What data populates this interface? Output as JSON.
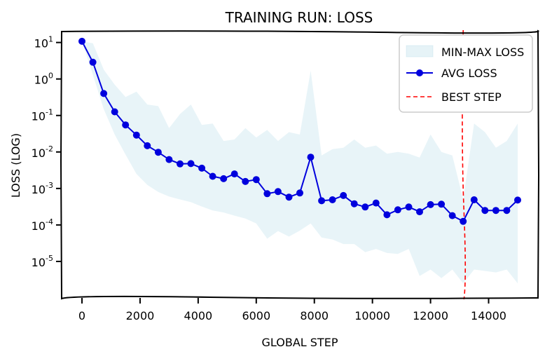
{
  "chart_data": {
    "type": "line",
    "title": "TRAINING RUN: LOSS",
    "xlabel": "GLOBAL STEP",
    "ylabel": "LOSS (LOG)",
    "xlim": [
      -700,
      15700
    ],
    "ylim_log10": [
      -6.0,
      1.3
    ],
    "yscale": "log",
    "x_ticks": [
      0,
      2000,
      4000,
      6000,
      8000,
      10000,
      12000,
      14000
    ],
    "y_ticks": [
      {
        "exp": 1,
        "base": "10",
        "sup": "1"
      },
      {
        "exp": 0,
        "base": "10",
        "sup": "0"
      },
      {
        "exp": -1,
        "base": "10",
        "sup": "-1"
      },
      {
        "exp": -2,
        "base": "10",
        "sup": "-2"
      },
      {
        "exp": -3,
        "base": "10",
        "sup": "-3"
      },
      {
        "exp": -4,
        "base": "10",
        "sup": "-4"
      },
      {
        "exp": -5,
        "base": "10",
        "sup": "-5"
      }
    ],
    "grid": false,
    "legend_position": "top-right",
    "legend": [
      {
        "label": "MIN-MAX LOSS",
        "kind": "band"
      },
      {
        "label": "AVG LOSS",
        "kind": "line-marker"
      },
      {
        "label": "BEST STEP",
        "kind": "dashed"
      }
    ],
    "series": [
      {
        "name": "AVG LOSS",
        "color": "#0000dd",
        "points": [
          [
            0,
            10.8
          ],
          [
            375,
            2.87
          ],
          [
            750,
            0.4
          ],
          [
            1125,
            0.126
          ],
          [
            1500,
            0.055
          ],
          [
            1875,
            0.029
          ],
          [
            2250,
            0.0148
          ],
          [
            2625,
            0.0098
          ],
          [
            3000,
            0.0062
          ],
          [
            3375,
            0.0047
          ],
          [
            3750,
            0.0048
          ],
          [
            4125,
            0.0036
          ],
          [
            4500,
            0.00215
          ],
          [
            4875,
            0.00185
          ],
          [
            5250,
            0.0025
          ],
          [
            5625,
            0.00155
          ],
          [
            6000,
            0.00175
          ],
          [
            6375,
            0.00072
          ],
          [
            6750,
            0.00082
          ],
          [
            7125,
            0.00058
          ],
          [
            7500,
            0.00075
          ],
          [
            7875,
            0.0072
          ],
          [
            8250,
            0.00046
          ],
          [
            8625,
            0.00049
          ],
          [
            9000,
            0.00064
          ],
          [
            9375,
            0.00038
          ],
          [
            9750,
            0.00031
          ],
          [
            10125,
            0.0004
          ],
          [
            10500,
            0.00019
          ],
          [
            10875,
            0.00026
          ],
          [
            11250,
            0.00031
          ],
          [
            11625,
            0.00023
          ],
          [
            12000,
            0.00036
          ],
          [
            12375,
            0.00037
          ],
          [
            12750,
            0.00018
          ],
          [
            13125,
            0.000125
          ],
          [
            13500,
            0.00049
          ],
          [
            13875,
            0.00025
          ],
          [
            14250,
            0.00025
          ],
          [
            14625,
            0.00025
          ],
          [
            15000,
            0.00048
          ]
        ]
      },
      {
        "name": "MIN-MAX LOSS",
        "color": "#add8e6",
        "upper": [
          [
            0,
            10.8
          ],
          [
            375,
            9.5
          ],
          [
            750,
            1.8
          ],
          [
            1125,
            0.7
          ],
          [
            1500,
            0.32
          ],
          [
            1875,
            0.45
          ],
          [
            2250,
            0.2
          ],
          [
            2625,
            0.18
          ],
          [
            3000,
            0.045
          ],
          [
            3375,
            0.11
          ],
          [
            3750,
            0.2
          ],
          [
            4125,
            0.055
          ],
          [
            4500,
            0.06
          ],
          [
            4875,
            0.02
          ],
          [
            5250,
            0.022
          ],
          [
            5625,
            0.045
          ],
          [
            6000,
            0.025
          ],
          [
            6375,
            0.04
          ],
          [
            6750,
            0.02
          ],
          [
            7125,
            0.035
          ],
          [
            7500,
            0.03
          ],
          [
            7875,
            1.7
          ],
          [
            8250,
            0.008
          ],
          [
            8625,
            0.012
          ],
          [
            9000,
            0.013
          ],
          [
            9375,
            0.022
          ],
          [
            9750,
            0.013
          ],
          [
            10125,
            0.015
          ],
          [
            10500,
            0.009
          ],
          [
            10875,
            0.01
          ],
          [
            11250,
            0.009
          ],
          [
            11625,
            0.007
          ],
          [
            12000,
            0.03
          ],
          [
            12375,
            0.01
          ],
          [
            12750,
            0.008
          ],
          [
            13125,
            0.0005
          ],
          [
            13500,
            0.06
          ],
          [
            13875,
            0.035
          ],
          [
            14250,
            0.013
          ],
          [
            14625,
            0.02
          ],
          [
            15000,
            0.06
          ]
        ],
        "lower": [
          [
            0,
            10.8
          ],
          [
            375,
            1.3
          ],
          [
            750,
            0.15
          ],
          [
            1125,
            0.03
          ],
          [
            1500,
            0.0085
          ],
          [
            1875,
            0.0025
          ],
          [
            2250,
            0.00125
          ],
          [
            2625,
            0.0008
          ],
          [
            3000,
            0.0006
          ],
          [
            3375,
            0.0005
          ],
          [
            3750,
            0.00042
          ],
          [
            4125,
            0.00032
          ],
          [
            4500,
            0.00025
          ],
          [
            4875,
            0.00022
          ],
          [
            5250,
            0.00018
          ],
          [
            5625,
            0.00015
          ],
          [
            6000,
            0.00011
          ],
          [
            6375,
            4.2e-05
          ],
          [
            6750,
            6.8e-05
          ],
          [
            7125,
            4.8e-05
          ],
          [
            7500,
            7e-05
          ],
          [
            7875,
            0.00011
          ],
          [
            8250,
            4.5e-05
          ],
          [
            8625,
            4e-05
          ],
          [
            9000,
            3e-05
          ],
          [
            9375,
            3e-05
          ],
          [
            9750,
            1.8e-05
          ],
          [
            10125,
            2.2e-05
          ],
          [
            10500,
            1.7e-05
          ],
          [
            10875,
            1.6e-05
          ],
          [
            11250,
            2.2e-05
          ],
          [
            11625,
            4e-06
          ],
          [
            12000,
            6e-06
          ],
          [
            12375,
            3.5e-06
          ],
          [
            12750,
            6e-06
          ],
          [
            13125,
            2.5e-06
          ],
          [
            13500,
            6e-06
          ],
          [
            13875,
            5.5e-06
          ],
          [
            14250,
            5e-06
          ],
          [
            14625,
            6e-06
          ],
          [
            15000,
            2.5e-06
          ]
        ]
      }
    ],
    "annotations": [
      {
        "type": "vline",
        "label": "BEST STEP",
        "x": 13125,
        "color": "#ff0000"
      }
    ]
  }
}
